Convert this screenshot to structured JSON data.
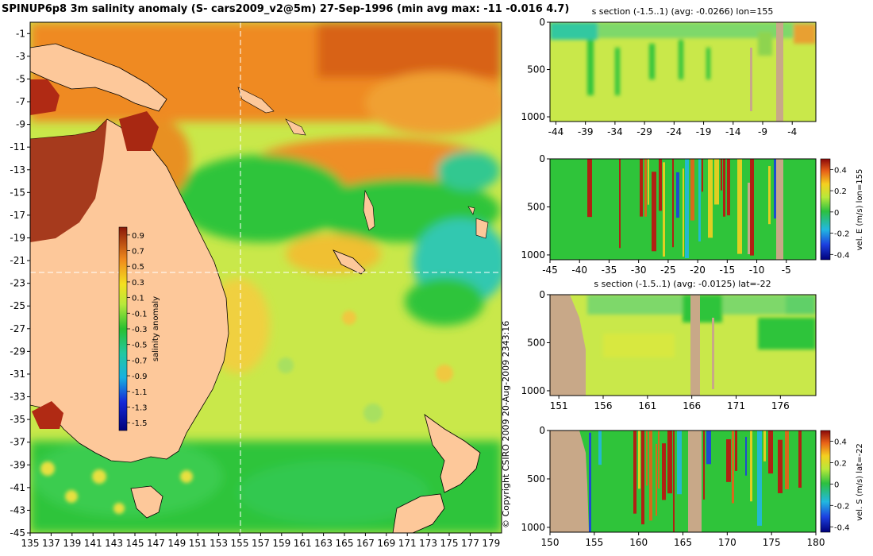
{
  "header": {
    "title": "SPINUP6p8 3m salinity anomaly (S- cars2009_v2@5m) 27-Sep-1996 (min avg max: -11 -0.016 4.7)"
  },
  "copyright": "© Copyright CSIRO 2009   20-Aug-2009 2343:16",
  "colors": {
    "ocean_mid": "#c9e84a",
    "ocean_green": "#2fc43a",
    "ocean_cyan": "#22c8c8",
    "ocean_orange": "#f08a1c",
    "ocean_red": "#c03010",
    "land": "#fdc89a",
    "section_land": "#c8a888"
  },
  "chart_data": [
    {
      "type": "heatmap",
      "id": "map",
      "title": "SPINUP6p8 3m salinity anomaly (S- cars2009_v2@5m) 27-Sep-1996 (min avg max: -11 -0.016 4.7)",
      "xlabel": "",
      "ylabel": "",
      "x_ticks": [
        "135",
        "137",
        "139",
        "141",
        "143",
        "145",
        "147",
        "149",
        "151",
        "153",
        "155",
        "157",
        "159",
        "161",
        "163",
        "165",
        "167",
        "169",
        "171",
        "173",
        "175",
        "177",
        "179"
      ],
      "y_ticks": [
        "-1",
        "-3",
        "-5",
        "-7",
        "-9",
        "-11",
        "-13",
        "-15",
        "-17",
        "-19",
        "-21",
        "-23",
        "-25",
        "-27",
        "-29",
        "-31",
        "-33",
        "-35",
        "-37",
        "-39",
        "-41",
        "-43",
        "-45"
      ],
      "xlim": [
        135,
        180
      ],
      "ylim": [
        -45,
        0
      ],
      "crosshair": {
        "lon": 155,
        "lat": -22
      },
      "colorbar": {
        "label": "salinity anomaly",
        "range": [
          -1.6,
          1.0
        ],
        "ticks": [
          "0.9",
          "0.7",
          "0.5",
          "0.3",
          "0.1",
          "-0.1",
          "-0.3",
          "-0.5",
          "-0.7",
          "-0.9",
          "-1.1",
          "-1.3",
          "-1.5"
        ]
      }
    },
    {
      "type": "heatmap",
      "id": "sec1",
      "title": "s section (-1.5..1) (avg: -0.0266) lon=155",
      "x_ticks": [
        "-44",
        "-39",
        "-34",
        "-29",
        "-24",
        "-19",
        "-14",
        "-9",
        "-4"
      ],
      "y_ticks": [
        "0",
        "500",
        "1000"
      ],
      "xlim": [
        -45,
        0
      ],
      "ylim": [
        1050,
        0
      ]
    },
    {
      "type": "heatmap",
      "id": "sec2",
      "title": "",
      "x_ticks": [
        "-45",
        "-40",
        "-35",
        "-30",
        "-25",
        "-20",
        "-15",
        "-10",
        "-5"
      ],
      "y_ticks": [
        "0",
        "500",
        "1000"
      ],
      "xlim": [
        -45,
        0
      ],
      "ylim": [
        1050,
        0
      ],
      "colorbar": {
        "label": "vel. E (m/s) lon=155",
        "range": [
          -0.45,
          0.5
        ],
        "ticks": [
          "0.4",
          "0.2",
          "0",
          "-0.2",
          "-0.4"
        ]
      }
    },
    {
      "type": "heatmap",
      "id": "sec3",
      "title": "s section (-1.5..1) (avg: -0.0125) lat=-22",
      "x_ticks": [
        "151",
        "156",
        "161",
        "166",
        "171",
        "176"
      ],
      "y_ticks": [
        "0",
        "500",
        "1000"
      ],
      "xlim": [
        150,
        180
      ],
      "ylim": [
        1050,
        0
      ]
    },
    {
      "type": "heatmap",
      "id": "sec4",
      "title": "",
      "x_ticks": [
        "150",
        "155",
        "160",
        "165",
        "170",
        "175",
        "180"
      ],
      "y_ticks": [
        "0",
        "500",
        "1000"
      ],
      "xlim": [
        150,
        180
      ],
      "ylim": [
        1050,
        0
      ],
      "colorbar": {
        "label": "vel. S (m/s) lat=-22",
        "range": [
          -0.45,
          0.5
        ],
        "ticks": [
          "0.4",
          "0.2",
          "0",
          "-0.2",
          "-0.4"
        ]
      }
    }
  ]
}
